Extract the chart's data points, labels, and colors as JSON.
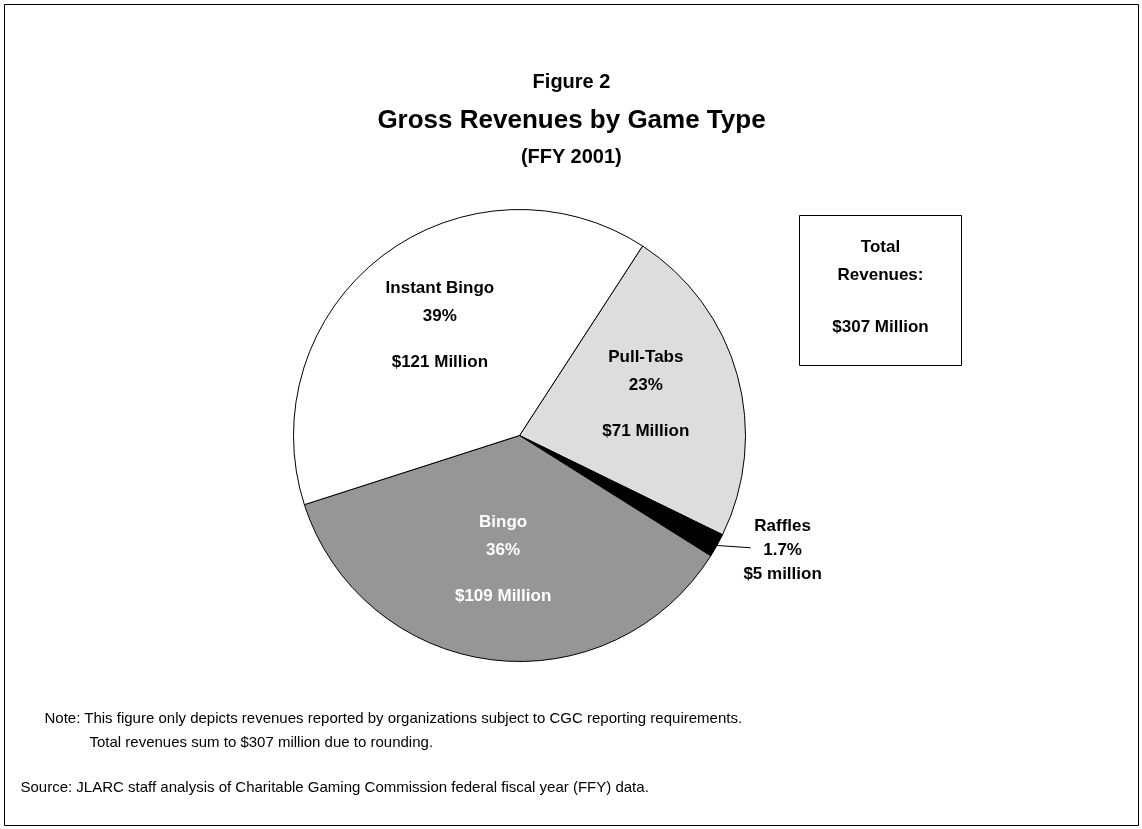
{
  "chart_data": {
    "type": "pie",
    "title": "Gross Revenues by Game Type",
    "subtitle": "(FFY 2001)",
    "categories": [
      "Pull-Tabs",
      "Raffles",
      "Bingo",
      "Instant Bingo"
    ],
    "values": [
      23,
      1.7,
      36,
      39
    ],
    "value_labels": [
      "23%",
      "1.7%",
      "36%",
      "39%"
    ],
    "colors": [
      "#dddddd",
      "#000000",
      "#969696",
      "#ffffff"
    ],
    "annotations": [
      "Figure 2",
      "Total Revenues:",
      "$307 Million",
      "Note:  This figure only depicts revenues reported by organizations subject to CGC reporting requirements.",
      "Total revenues sum to $307 million due to rounding.",
      "Source:  JLARC staff analysis of Charitable Gaming Commission federal fiscal year (FFY) data.",
      {
        "text": "$71 Million",
        "x": "Pull-Tabs"
      },
      {
        "text": "$5 million",
        "x": "Raffles"
      },
      {
        "text": "$109 Million",
        "x": "Bingo"
      },
      {
        "text": "$121 Million",
        "x": "Instant Bingo"
      }
    ]
  }
}
